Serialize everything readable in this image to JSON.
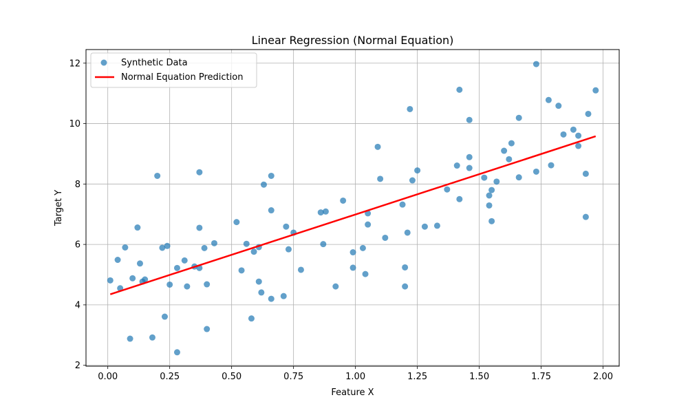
{
  "chart_data": {
    "type": "scatter",
    "title": "Linear Regression (Normal Equation)",
    "xlabel": "Feature X",
    "ylabel": "Target Y",
    "xlim": [
      -0.088,
      2.065
    ],
    "ylim": [
      1.97,
      12.45
    ],
    "xticks": [
      0,
      0.25,
      0.5,
      0.75,
      1.0,
      1.25,
      1.5,
      1.75,
      2.0
    ],
    "xtick_labels": [
      "0.00",
      "0.25",
      "0.50",
      "0.75",
      "1.00",
      "1.25",
      "1.50",
      "1.75",
      "2.00"
    ],
    "yticks": [
      2,
      4,
      6,
      8,
      10,
      12
    ],
    "ytick_labels": [
      "2",
      "4",
      "6",
      "8",
      "10",
      "12"
    ],
    "grid": true,
    "legend_position": "top-left",
    "series": [
      {
        "name": "Synthetic Data",
        "kind": "scatter",
        "color": "#1f77b4",
        "alpha": 0.7,
        "points": [
          [
            0.01,
            4.81
          ],
          [
            0.04,
            5.49
          ],
          [
            0.05,
            4.55
          ],
          [
            0.07,
            5.9
          ],
          [
            0.09,
            2.88
          ],
          [
            0.1,
            4.88
          ],
          [
            0.12,
            6.56
          ],
          [
            0.13,
            5.37
          ],
          [
            0.14,
            4.77
          ],
          [
            0.15,
            4.84
          ],
          [
            0.18,
            2.92
          ],
          [
            0.2,
            8.27
          ],
          [
            0.22,
            5.89
          ],
          [
            0.23,
            3.61
          ],
          [
            0.24,
            5.95
          ],
          [
            0.25,
            4.67
          ],
          [
            0.28,
            2.43
          ],
          [
            0.28,
            5.22
          ],
          [
            0.31,
            5.47
          ],
          [
            0.32,
            4.61
          ],
          [
            0.35,
            5.27
          ],
          [
            0.37,
            5.22
          ],
          [
            0.37,
            6.55
          ],
          [
            0.37,
            8.39
          ],
          [
            0.39,
            5.88
          ],
          [
            0.4,
            3.2
          ],
          [
            0.4,
            4.68
          ],
          [
            0.43,
            6.04
          ],
          [
            0.52,
            6.74
          ],
          [
            0.54,
            5.14
          ],
          [
            0.56,
            6.02
          ],
          [
            0.58,
            3.55
          ],
          [
            0.59,
            5.76
          ],
          [
            0.61,
            5.91
          ],
          [
            0.61,
            4.77
          ],
          [
            0.62,
            4.41
          ],
          [
            0.63,
            7.98
          ],
          [
            0.66,
            8.27
          ],
          [
            0.66,
            7.13
          ],
          [
            0.66,
            4.2
          ],
          [
            0.71,
            4.29
          ],
          [
            0.72,
            6.59
          ],
          [
            0.73,
            5.84
          ],
          [
            0.75,
            6.39
          ],
          [
            0.78,
            5.16
          ],
          [
            0.86,
            7.06
          ],
          [
            0.87,
            6.01
          ],
          [
            0.88,
            7.09
          ],
          [
            0.92,
            4.61
          ],
          [
            0.95,
            7.45
          ],
          [
            0.99,
            5.74
          ],
          [
            0.99,
            5.23
          ],
          [
            1.03,
            5.88
          ],
          [
            1.04,
            5.02
          ],
          [
            1.05,
            7.03
          ],
          [
            1.05,
            6.66
          ],
          [
            1.09,
            9.23
          ],
          [
            1.1,
            8.17
          ],
          [
            1.12,
            6.22
          ],
          [
            1.19,
            7.32
          ],
          [
            1.2,
            5.24
          ],
          [
            1.2,
            4.61
          ],
          [
            1.21,
            6.39
          ],
          [
            1.22,
            10.48
          ],
          [
            1.23,
            8.12
          ],
          [
            1.25,
            8.45
          ],
          [
            1.28,
            6.59
          ],
          [
            1.33,
            6.62
          ],
          [
            1.37,
            7.82
          ],
          [
            1.41,
            8.61
          ],
          [
            1.42,
            7.5
          ],
          [
            1.42,
            11.12
          ],
          [
            1.46,
            10.12
          ],
          [
            1.46,
            8.89
          ],
          [
            1.46,
            8.53
          ],
          [
            1.52,
            8.21
          ],
          [
            1.54,
            7.62
          ],
          [
            1.54,
            7.29
          ],
          [
            1.55,
            6.77
          ],
          [
            1.55,
            7.8
          ],
          [
            1.57,
            8.08
          ],
          [
            1.6,
            9.1
          ],
          [
            1.62,
            8.82
          ],
          [
            1.63,
            9.35
          ],
          [
            1.66,
            10.19
          ],
          [
            1.66,
            8.22
          ],
          [
            1.73,
            11.97
          ],
          [
            1.73,
            8.41
          ],
          [
            1.78,
            10.78
          ],
          [
            1.79,
            8.62
          ],
          [
            1.82,
            10.59
          ],
          [
            1.84,
            9.64
          ],
          [
            1.88,
            9.8
          ],
          [
            1.9,
            9.6
          ],
          [
            1.9,
            9.26
          ],
          [
            1.93,
            6.91
          ],
          [
            1.93,
            8.34
          ],
          [
            1.94,
            10.32
          ],
          [
            1.97,
            11.1
          ]
        ]
      },
      {
        "name": "Normal Equation Prediction",
        "kind": "line",
        "color": "#ff0000",
        "points": [
          [
            0.01,
            4.35
          ],
          [
            1.97,
            9.58
          ]
        ]
      }
    ]
  }
}
